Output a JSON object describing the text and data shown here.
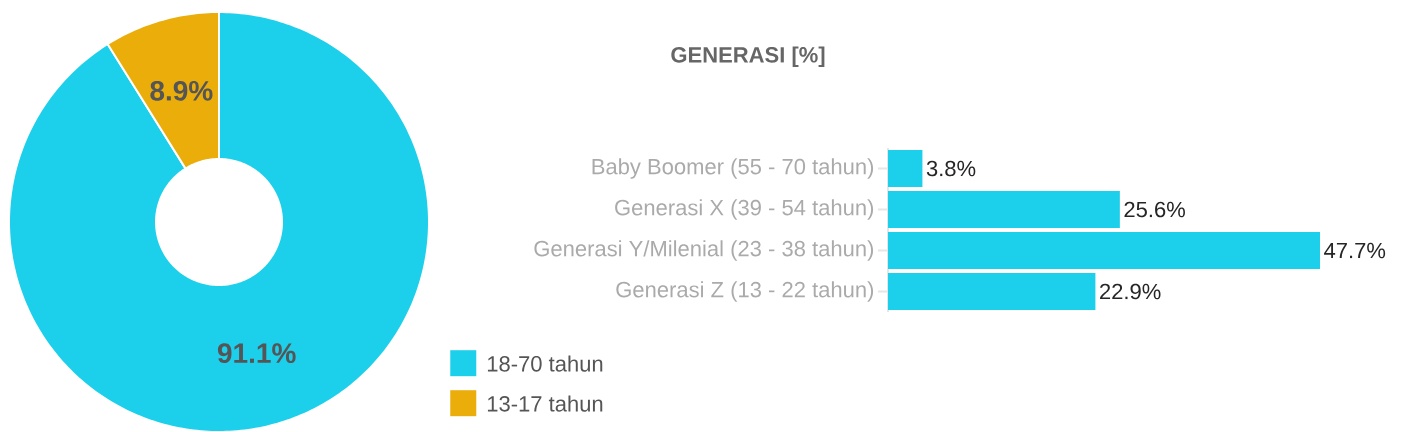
{
  "chart_data": [
    {
      "type": "donut",
      "categories": [
        "18-70 tahun",
        "13-17 tahun"
      ],
      "values": [
        91.1,
        8.9
      ],
      "colors": [
        "#1ccfeb",
        "#ebad0a"
      ],
      "value_labels": [
        "91.1%",
        "8.9%"
      ],
      "legend": "right"
    },
    {
      "type": "bar",
      "orientation": "horizontal",
      "title": "GENERASI [%]",
      "categories": [
        "Baby Boomer (55 - 70 tahun)",
        "Generasi X (39 - 54 tahun)",
        "Generasi Y/Milenial (23 - 38 tahun)",
        "Generasi Z (13 - 22 tahun)"
      ],
      "values": [
        3.8,
        25.6,
        47.7,
        22.9
      ],
      "color": "#1ccfeb",
      "value_labels": [
        "3.8%",
        "25.6%",
        "47.7%",
        "22.9%"
      ]
    }
  ]
}
